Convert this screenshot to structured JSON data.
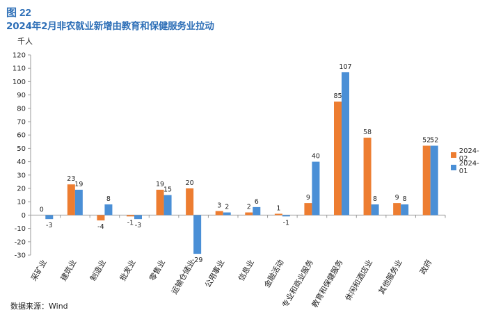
{
  "figure_number": "图 22",
  "title": "2024年2月非农就业新增由教育和保健服务业拉动",
  "unit_label": "千人",
  "source_note": "数据来源：Wind",
  "colors": {
    "series_2024_02": "#ed7d31",
    "series_2024_01": "#4a8fd6",
    "axis": "#9a9a9a"
  },
  "chart_data": {
    "type": "bar",
    "title": "2024年2月非农就业新增由教育和保健服务业拉动",
    "xlabel": "",
    "ylabel": "千人",
    "ylim": [
      -30,
      120
    ],
    "yticks": [
      -30,
      -20,
      -10,
      0,
      10,
      20,
      30,
      40,
      50,
      60,
      70,
      80,
      90,
      100,
      110,
      120
    ],
    "grid": false,
    "legend_position": "right",
    "categories": [
      "采矿业",
      "建筑业",
      "制造业",
      "批发业",
      "零售业",
      "运输仓储业",
      "公用事业",
      "信息业",
      "金融活动",
      "专业和商业服务",
      "教育和保健服务",
      "休闲和酒店业",
      "其他服务业",
      "政府"
    ],
    "series": [
      {
        "name": "2024-02",
        "values": [
          0,
          23,
          -4,
          -1,
          19,
          20,
          3,
          2,
          1,
          9,
          85,
          58,
          9,
          52
        ]
      },
      {
        "name": "2024-01",
        "values": [
          -3,
          19,
          8,
          -3,
          15,
          -29,
          2,
          6,
          -1,
          40,
          107,
          8,
          8,
          52
        ]
      }
    ]
  }
}
